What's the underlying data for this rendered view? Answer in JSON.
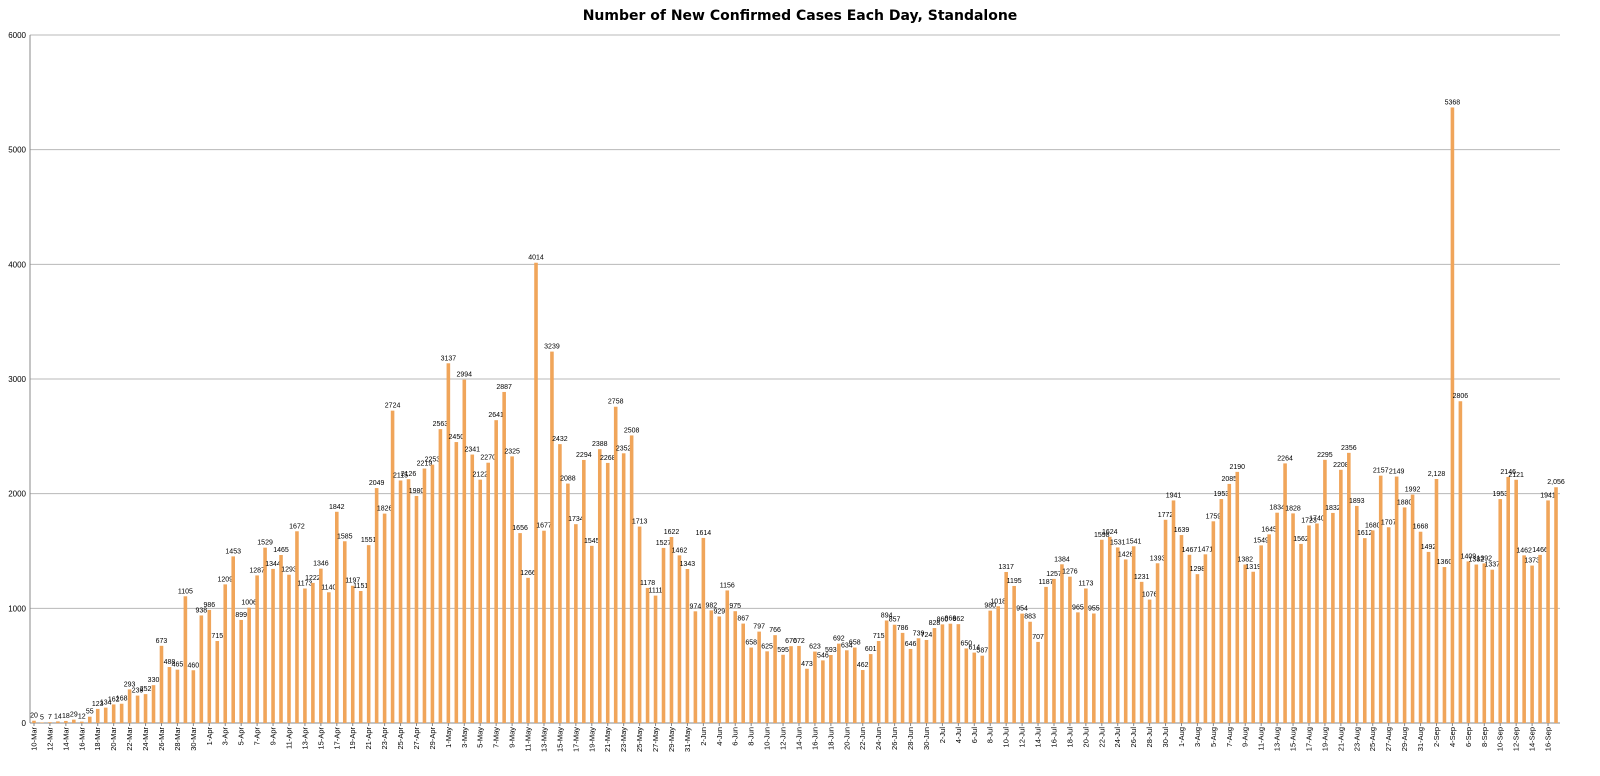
{
  "chart_data": {
    "type": "bar",
    "title": "Number of New Confirmed Cases Each Day, Standalone",
    "xlabel": "",
    "ylabel": "",
    "ylim": [
      0,
      6000
    ],
    "yticks": [
      0,
      1000,
      2000,
      3000,
      4000,
      5000,
      6000
    ],
    "grid": true,
    "legend": "none",
    "bar_color": "#F0A55A",
    "x_tick_labels": [
      "10-Mar",
      "12-Mar",
      "14-Mar",
      "16-Mar",
      "18-Mar",
      "20-Mar",
      "22-Mar",
      "24-Mar",
      "26-Mar",
      "28-Mar",
      "30-Mar",
      "1-Apr",
      "3-Apr",
      "5-Apr",
      "7-Apr",
      "9-Apr",
      "11-Apr",
      "13-Apr",
      "15-Apr",
      "17-Apr",
      "19-Apr",
      "21-Apr",
      "23-Apr",
      "25-Apr",
      "27-Apr",
      "29-Apr",
      "1-May",
      "3-May",
      "5-May",
      "7-May",
      "9-May",
      "11-May",
      "13-May",
      "15-May",
      "17-May",
      "19-May",
      "21-May",
      "23-May",
      "25-May",
      "27-May",
      "29-May",
      "31-May",
      "2-Jun",
      "4-Jun",
      "6-Jun",
      "8-Jun",
      "10-Jun",
      "12-Jun",
      "14-Jun",
      "16-Jun",
      "18-Jun",
      "20-Jun",
      "22-Jun",
      "24-Jun",
      "26-Jun",
      "28-Jun",
      "30-Jun",
      "2-Jul",
      "4-Jul",
      "6-Jul",
      "8-Jul",
      "10-Jul",
      "12-Jul",
      "14-Jul",
      "16-Jul",
      "18-Jul",
      "20-Jul",
      "22-Jul",
      "24-Jul",
      "26-Jul",
      "28-Jul",
      "30-Jul",
      "1-Aug",
      "3-Aug",
      "5-Aug",
      "7-Aug",
      "9-Aug",
      "11-Aug",
      "13-Aug",
      "15-Aug",
      "17-Aug",
      "19-Aug",
      "21-Aug",
      "23-Aug",
      "25-Aug",
      "27-Aug",
      "29-Aug",
      "31-Aug",
      "2-Sep",
      "4-Sep",
      "6-Sep",
      "8-Sep",
      "10-Sep",
      "12-Sep",
      "14-Sep",
      "16-Sep"
    ],
    "values": [
      20,
      5,
      7,
      14,
      18,
      29,
      12,
      55,
      123,
      134,
      162,
      168,
      293,
      239,
      252,
      330,
      673,
      488,
      465,
      1105,
      460,
      938,
      986,
      715,
      1209,
      1453,
      899,
      1006,
      1287,
      1529,
      1344,
      1465,
      1293,
      1672,
      1173,
      1222,
      1346,
      1140,
      1842,
      1585,
      1197,
      1151,
      1551,
      2049,
      1826,
      2724,
      2115,
      2126,
      1980,
      2219,
      2253,
      2563,
      3137,
      2450,
      2994,
      2341,
      2122,
      2270,
      2641,
      2887,
      2325,
      1656,
      1266,
      4014,
      1677,
      3239,
      2432,
      2088,
      1734,
      2294,
      1545,
      2388,
      2268,
      2758,
      2352,
      2508,
      1713,
      1178,
      1111,
      1527,
      1622,
      1462,
      1343,
      974,
      1614,
      982,
      929,
      1156,
      975,
      867,
      658,
      797,
      625,
      766,
      595,
      670,
      672,
      473,
      623,
      546,
      593,
      692,
      634,
      658,
      462,
      601,
      715,
      894,
      857,
      786,
      646,
      739,
      724,
      828,
      860,
      866,
      862,
      650,
      614,
      587,
      980,
      1018,
      1317,
      1195,
      954,
      883,
      707,
      1187,
      1257,
      1384,
      1276,
      965,
      1173,
      955,
      1598,
      1624,
      1531,
      1426,
      1541,
      1231,
      1076,
      1393,
      1772,
      1941,
      1639,
      1467,
      1298,
      1471,
      1759,
      1953,
      2085,
      2190,
      1382,
      1319,
      1549,
      1645,
      1834,
      2264,
      1828,
      1562,
      1723,
      1740,
      2295,
      1832,
      2208,
      2356,
      1893,
      1612,
      1680,
      2157,
      1707,
      2149,
      1880,
      1992,
      1668,
      1492,
      2128,
      1360,
      5368,
      2806,
      1409,
      1382,
      1392,
      1337,
      1953,
      2146,
      2121,
      1462,
      1373,
      1466,
      1941,
      2056
    ],
    "data_labels": [
      "20",
      "5",
      "7",
      "14",
      "18",
      "29",
      "12",
      "55",
      "123",
      "134",
      "162",
      "168",
      "293",
      "239",
      "252",
      "330",
      "673",
      "488",
      "465",
      "1105",
      "460",
      "938",
      "986",
      "715",
      "1209",
      "1453",
      "899",
      "1006",
      "1287",
      "1529",
      "1344",
      "1465",
      "1293",
      "1672",
      "1173",
      "1222",
      "1346",
      "1140",
      "1842",
      "1585",
      "1197",
      "1151",
      "1551",
      "2049",
      "1826",
      "2724",
      "2115",
      "2126",
      "1980",
      "2219",
      "2253",
      "2563",
      "3137",
      "2450",
      "2994",
      "2341",
      "2122",
      "2270",
      "2641",
      "2887",
      "2325",
      "1656",
      "1266",
      "4014",
      "1677",
      "3239",
      "2432",
      "2088",
      "1734",
      "2294",
      "1545",
      "2388",
      "2268",
      "2758",
      "2352",
      "2508",
      "1713",
      "1178",
      "1111",
      "1527",
      "1622",
      "1462",
      "1343",
      "974",
      "1614",
      "982",
      "929",
      "1156",
      "975",
      "867",
      "658",
      "797",
      "625",
      "766",
      "595",
      "670",
      "672",
      "473",
      "623",
      "546",
      "593",
      "692",
      "634",
      "658",
      "462",
      "601",
      "715",
      "894",
      "857",
      "786",
      "646",
      "739",
      "724",
      "828",
      "860",
      "866",
      "862",
      "650",
      "614",
      "587",
      "980",
      "1018",
      "1317",
      "1195",
      "954",
      "883",
      "707",
      "1187",
      "1257",
      "1384",
      "1276",
      "965",
      "1173",
      "955",
      "1598",
      "1624",
      "1531",
      "1426",
      "1541",
      "1231",
      "1076",
      "1393",
      "1772",
      "1941",
      "1639",
      "1467",
      "1298",
      "1471",
      "1759",
      "1953",
      "2085",
      "2190",
      "1382",
      "1319",
      "1549",
      "1645",
      "1834",
      "2264",
      "1828",
      "1562",
      "1723",
      "1740",
      "2295",
      "1832",
      "2208",
      "2356",
      "1893",
      "1612",
      "1680",
      "2157",
      "1707",
      "2149",
      "1880",
      "1992",
      "1668",
      "1492",
      "2,128",
      "1360",
      "5368",
      "2806",
      "1409",
      "1382",
      "1392",
      "1337",
      "1953",
      "2146",
      "2121",
      "1462",
      "1373",
      "1466",
      "1941",
      "2,056"
    ]
  }
}
